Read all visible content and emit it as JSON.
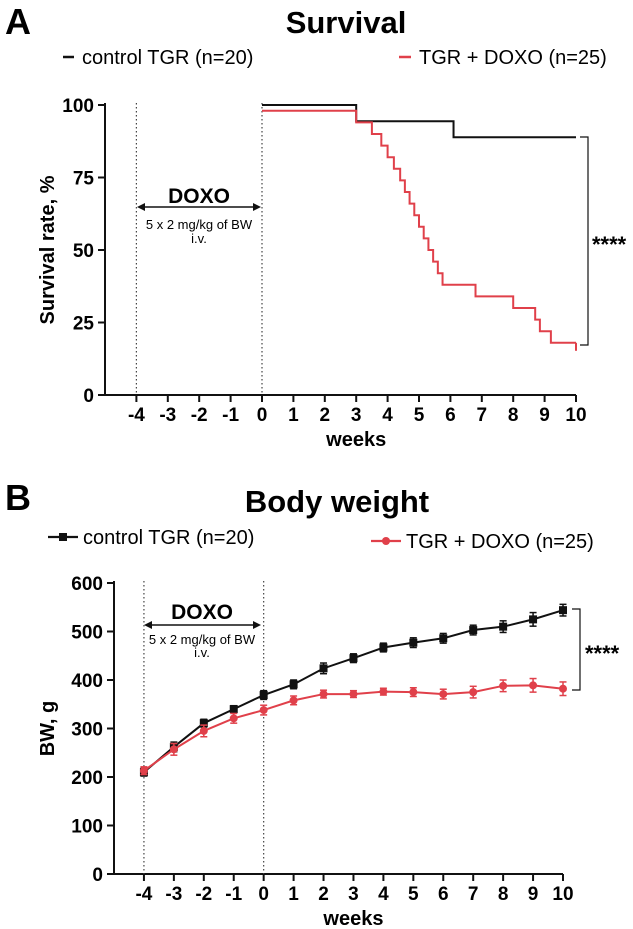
{
  "panel_a": {
    "letter": "A",
    "legend": {
      "control": "control TGR (n=20)",
      "doxo": "TGR + DOXO (n=25)"
    },
    "annotation": {
      "doxo": "DOXO",
      "dose_line1": "5 x 2 mg/kg of BW",
      "dose_line2": "i.v."
    },
    "significance": "****"
  },
  "panel_b": {
    "letter": "B",
    "legend": {
      "control": "control TGR (n=20)",
      "doxo": "TGR + DOXO (n=25)"
    },
    "annotation": {
      "doxo": "DOXO",
      "dose_line1": "5 x 2 mg/kg of BW",
      "dose_line2": "i.v."
    },
    "significance": "****"
  },
  "colors": {
    "control": "#111111",
    "doxo": "#e0404a"
  },
  "chart_data": [
    {
      "type": "line",
      "title": "Survival",
      "xlabel": "weeks",
      "ylabel": "Survival rate, %",
      "xlim": [
        -5,
        10
      ],
      "ylim": [
        0,
        100
      ],
      "xticks": [
        -4,
        -3,
        -2,
        -1,
        0,
        1,
        2,
        3,
        4,
        5,
        6,
        7,
        8,
        9,
        10
      ],
      "yticks": [
        0,
        25,
        50,
        75,
        100
      ],
      "vlines": [
        -4,
        0
      ],
      "series": [
        {
          "name": "control TGR (n=20)",
          "step": true,
          "x": [
            0,
            3,
            6.1,
            10
          ],
          "y": [
            100,
            94.4,
            88.9,
            88.9
          ]
        },
        {
          "name": "TGR + DOXO (n=25)",
          "step": true,
          "x": [
            0,
            3,
            3.5,
            3.8,
            4.0,
            4.2,
            4.4,
            4.55,
            4.7,
            4.85,
            5.0,
            5.15,
            5.3,
            5.45,
            5.6,
            5.75,
            5.9,
            6.1,
            6.8,
            8.0,
            8.7,
            8.85,
            9.0,
            9.2,
            10
          ],
          "y": [
            98,
            94,
            90,
            86,
            82,
            78,
            74,
            70,
            66,
            62,
            58,
            54,
            50,
            46,
            42,
            38,
            38,
            38,
            34,
            30,
            26,
            22,
            22,
            18,
            18
          ]
        }
      ]
    },
    {
      "type": "line",
      "title": "Body weight",
      "xlabel": "weeks",
      "ylabel": "BW, g",
      "xlim": [
        -5,
        10
      ],
      "ylim": [
        0,
        600
      ],
      "xticks": [
        -4,
        -3,
        -2,
        -1,
        0,
        1,
        2,
        3,
        4,
        5,
        6,
        7,
        8,
        9,
        10
      ],
      "yticks": [
        0,
        100,
        200,
        300,
        400,
        500,
        600
      ],
      "vlines": [
        -4,
        0
      ],
      "series": [
        {
          "name": "control TGR (n=20)",
          "marker": "square",
          "x": [
            -4,
            -3,
            -2,
            -1,
            0,
            1,
            2,
            3,
            4,
            5,
            6,
            7,
            8,
            9,
            10
          ],
          "y": [
            210,
            262,
            311,
            340,
            369,
            391,
            424,
            445,
            467,
            477,
            486,
            503,
            510,
            525,
            544
          ],
          "err": [
            8,
            10,
            8,
            7,
            9,
            9,
            11,
            9,
            9,
            10,
            10,
            10,
            12,
            14,
            12
          ]
        },
        {
          "name": "TGR + DOXO (n=25)",
          "marker": "circle",
          "x": [
            -4,
            -3,
            -2,
            -1,
            0,
            1,
            2,
            3,
            4,
            5,
            6,
            7,
            8,
            9,
            10
          ],
          "y": [
            213,
            257,
            295,
            321,
            338,
            358,
            371,
            371,
            376,
            375,
            371,
            375,
            388,
            389,
            382
          ],
          "err": [
            8,
            12,
            12,
            10,
            10,
            9,
            8,
            7,
            7,
            9,
            10,
            12,
            12,
            14,
            14
          ]
        }
      ]
    }
  ]
}
